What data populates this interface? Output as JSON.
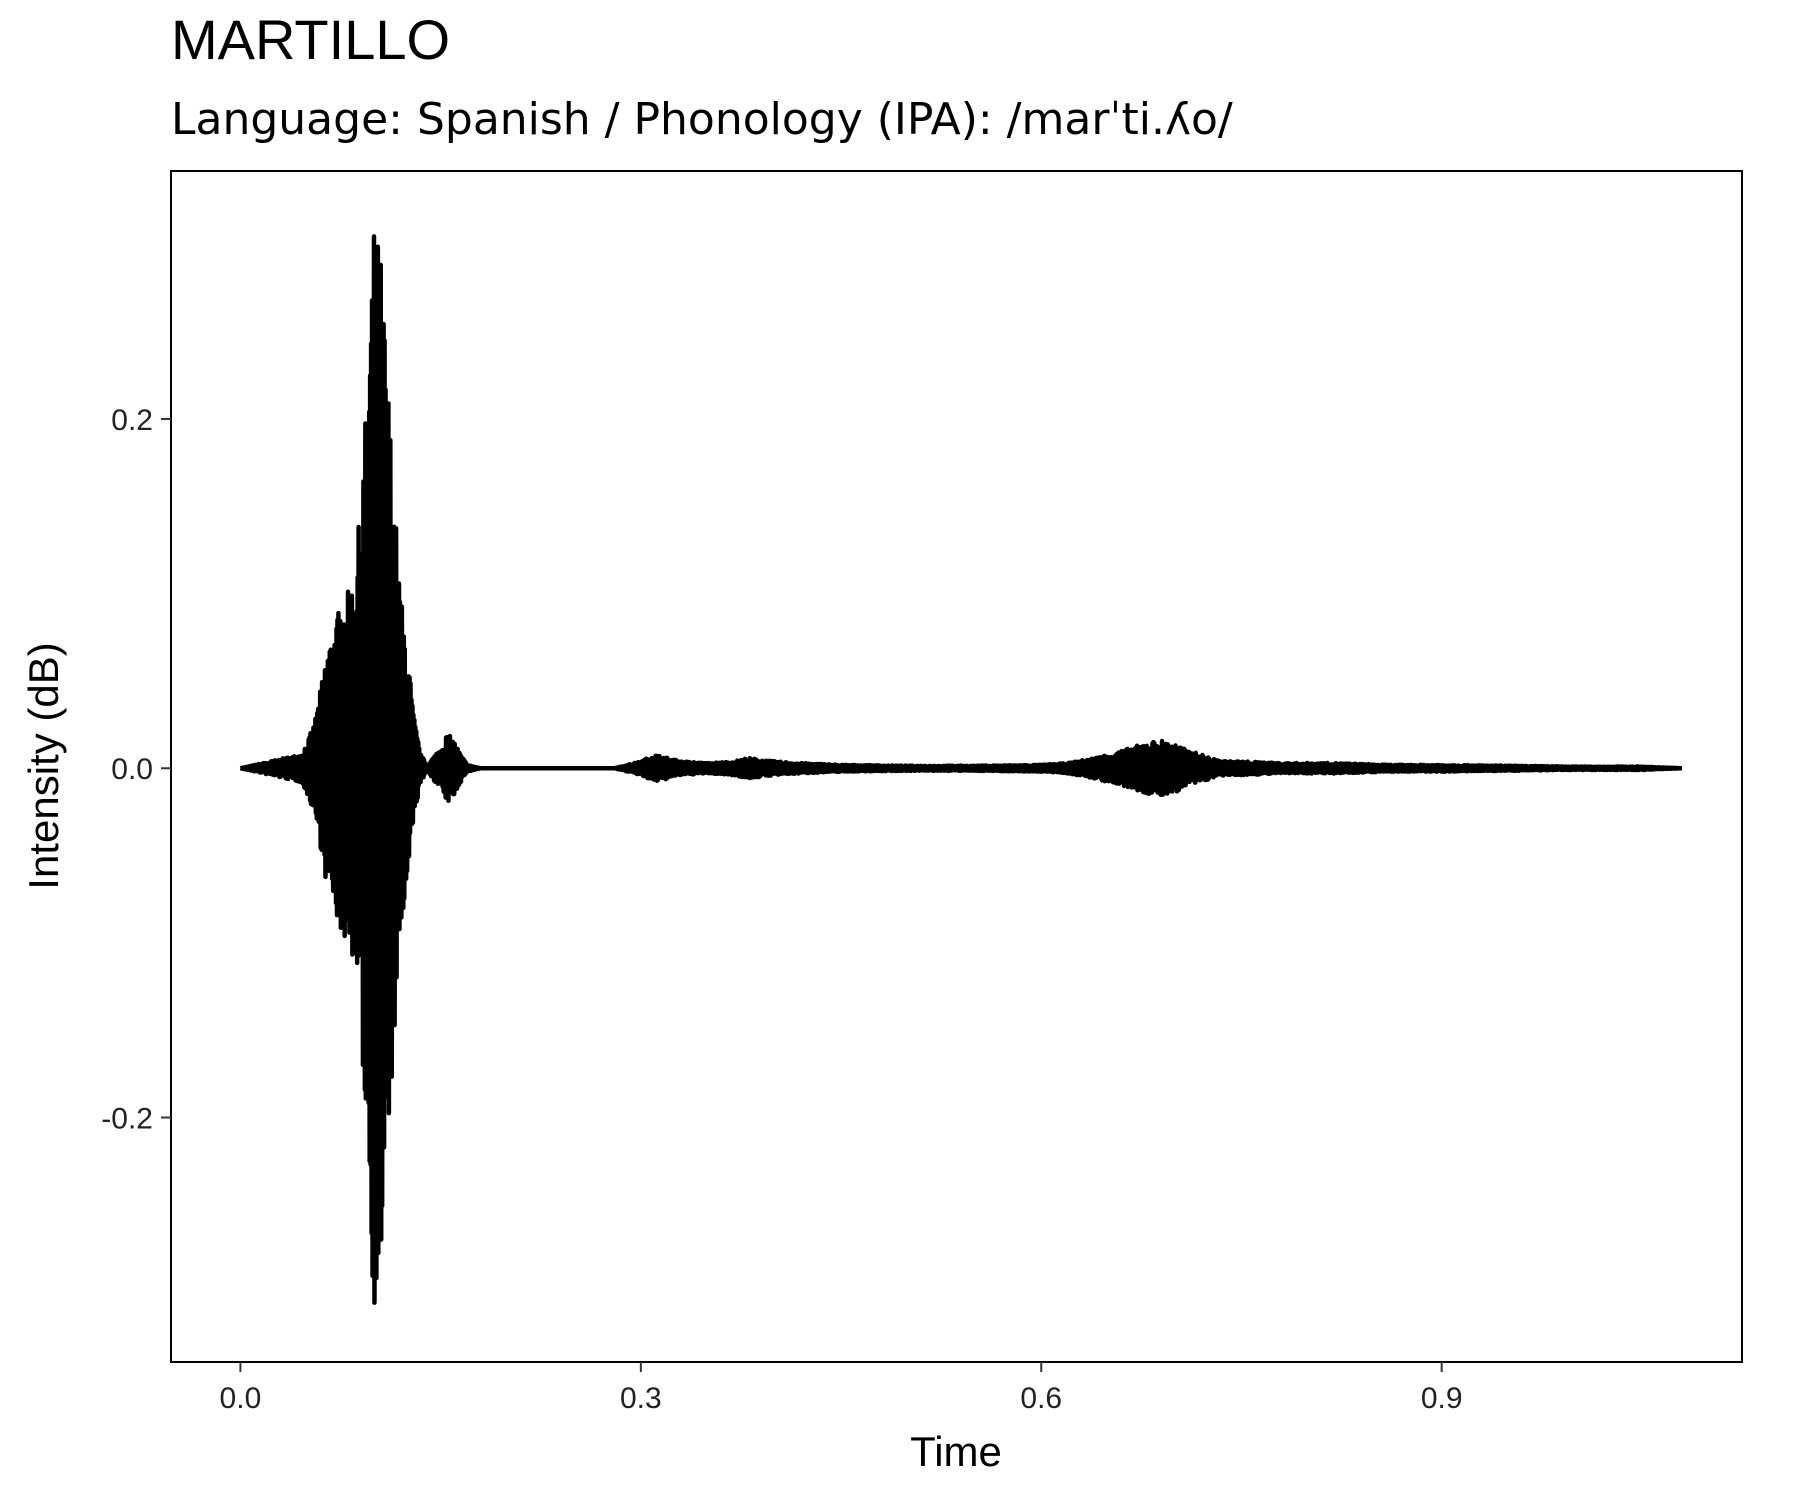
{
  "chart_data": {
    "type": "line",
    "title": "MARTILLO",
    "subtitle": "Language: Spanish / Phonology (IPA): /marˈti.ʎo/",
    "xlabel": "Time",
    "ylabel": "Intensity (dB)",
    "xlim": [
      -0.052,
      1.125
    ],
    "ylim": [
      -0.34,
      0.342
    ],
    "x_ticks": [
      0.0,
      0.3,
      0.6,
      0.9
    ],
    "x_tick_labels": [
      "0.0",
      "0.3",
      "0.6",
      "0.9"
    ],
    "y_ticks": [
      0.2,
      0.0,
      -0.2
    ],
    "y_tick_labels": [
      "0.2",
      "0.0",
      "-0.2"
    ],
    "grid": false,
    "legend": "none",
    "line_color": "#000000",
    "series": [
      {
        "x": [
          0.0,
          0.045,
          0.05,
          0.055,
          0.06,
          0.065,
          0.07,
          0.075,
          0.08,
          0.085,
          0.09,
          0.095,
          0.1,
          0.105,
          0.11,
          0.115,
          0.12,
          0.125,
          0.13,
          0.135,
          0.14,
          0.15,
          0.155,
          0.16,
          0.165,
          0.17,
          0.18,
          0.28,
          0.3,
          0.31,
          0.32,
          0.33,
          0.35,
          0.37,
          0.38,
          0.39,
          0.4,
          0.42,
          0.45,
          0.5,
          0.55,
          0.6,
          0.62,
          0.64,
          0.66,
          0.68,
          0.69,
          0.7,
          0.71,
          0.72,
          0.73,
          0.74,
          0.75,
          0.78,
          0.82,
          0.86,
          0.9,
          0.95,
          1.0,
          1.05,
          1.08
        ],
        "envelope": [
          0.0,
          0.008,
          0.015,
          0.025,
          0.045,
          0.07,
          0.08,
          0.095,
          0.1,
          0.11,
          0.15,
          0.22,
          0.31,
          0.3,
          0.23,
          0.16,
          0.1,
          0.07,
          0.03,
          0.008,
          0.002,
          0.012,
          0.02,
          0.016,
          0.008,
          0.002,
          0.0,
          0.0,
          0.004,
          0.008,
          0.006,
          0.004,
          0.003,
          0.004,
          0.006,
          0.005,
          0.004,
          0.003,
          0.002,
          0.0015,
          0.0015,
          0.002,
          0.003,
          0.006,
          0.01,
          0.015,
          0.016,
          0.014,
          0.01,
          0.008,
          0.005,
          0.004,
          0.004,
          0.003,
          0.003,
          0.002,
          0.002,
          0.0015,
          0.001,
          0.001,
          0.0
        ]
      }
    ]
  }
}
